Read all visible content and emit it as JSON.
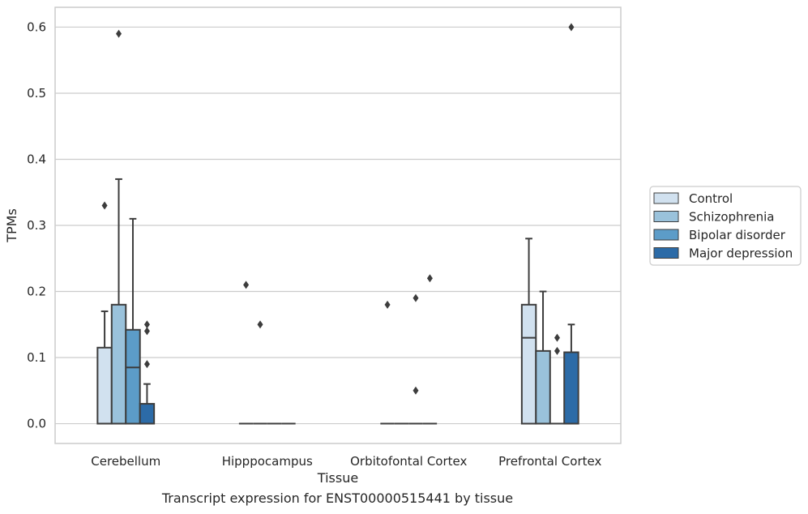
{
  "caption": "Transcript expression for ENST00000515441 by tissue",
  "chart_data": {
    "type": "box",
    "xlabel": "Tissue",
    "ylabel": "TPMs",
    "ylim": [
      -0.03,
      0.63
    ],
    "yticks": [
      "0.0",
      "0.1",
      "0.2",
      "0.3",
      "0.4",
      "0.5",
      "0.6"
    ],
    "grid": "horizontal",
    "legend_placement": "right",
    "categories": [
      "Cerebellum",
      "Hipppocampus",
      "Orbitofontal Cortex",
      "Prefrontal Cortex"
    ],
    "series": [
      {
        "name": "Control",
        "color": "#d1e1ef",
        "boxes": [
          {
            "q1": 0.0,
            "median": 0.0,
            "q3": 0.115,
            "whisker_low": 0.0,
            "whisker_high": 0.17,
            "outliers": [
              0.33
            ]
          },
          {
            "q1": 0.0,
            "median": 0.0,
            "q3": 0.0,
            "whisker_low": 0.0,
            "whisker_high": 0.0,
            "outliers": [
              0.21
            ]
          },
          {
            "q1": 0.0,
            "median": 0.0,
            "q3": 0.0,
            "whisker_low": 0.0,
            "whisker_high": 0.0,
            "outliers": [
              0.18
            ]
          },
          {
            "q1": 0.0,
            "median": 0.13,
            "q3": 0.18,
            "whisker_low": 0.0,
            "whisker_high": 0.28,
            "outliers": []
          }
        ]
      },
      {
        "name": "Schizophrenia",
        "color": "#9ac2db",
        "boxes": [
          {
            "q1": 0.0,
            "median": 0.0,
            "q3": 0.18,
            "whisker_low": 0.0,
            "whisker_high": 0.37,
            "outliers": [
              0.59
            ]
          },
          {
            "q1": 0.0,
            "median": 0.0,
            "q3": 0.0,
            "whisker_low": 0.0,
            "whisker_high": 0.0,
            "outliers": [
              0.15
            ]
          },
          {
            "q1": 0.0,
            "median": 0.0,
            "q3": 0.0,
            "whisker_low": 0.0,
            "whisker_high": 0.0,
            "outliers": []
          },
          {
            "q1": 0.0,
            "median": 0.0,
            "q3": 0.11,
            "whisker_low": 0.0,
            "whisker_high": 0.2,
            "outliers": []
          }
        ]
      },
      {
        "name": "Bipolar disorder",
        "color": "#5c9cc8",
        "boxes": [
          {
            "q1": 0.0,
            "median": 0.085,
            "q3": 0.142,
            "whisker_low": 0.0,
            "whisker_high": 0.31,
            "outliers": []
          },
          {
            "q1": 0.0,
            "median": 0.0,
            "q3": 0.0,
            "whisker_low": 0.0,
            "whisker_high": 0.0,
            "outliers": []
          },
          {
            "q1": 0.0,
            "median": 0.0,
            "q3": 0.0,
            "whisker_low": 0.0,
            "whisker_high": 0.0,
            "outliers": [
              0.19,
              0.05
            ]
          },
          {
            "q1": 0.0,
            "median": 0.0,
            "q3": 0.0,
            "whisker_low": 0.0,
            "whisker_high": 0.0,
            "outliers": [
              0.13,
              0.11
            ]
          }
        ]
      },
      {
        "name": "Major depression",
        "color": "#2c6ba7",
        "boxes": [
          {
            "q1": 0.0,
            "median": 0.0,
            "q3": 0.03,
            "whisker_low": 0.0,
            "whisker_high": 0.06,
            "outliers": [
              0.15,
              0.14,
              0.09
            ]
          },
          {
            "q1": 0.0,
            "median": 0.0,
            "q3": 0.0,
            "whisker_low": 0.0,
            "whisker_high": 0.0,
            "outliers": []
          },
          {
            "q1": 0.0,
            "median": 0.0,
            "q3": 0.0,
            "whisker_low": 0.0,
            "whisker_high": 0.0,
            "outliers": [
              0.22
            ]
          },
          {
            "q1": 0.0,
            "median": 0.0,
            "q3": 0.108,
            "whisker_low": 0.0,
            "whisker_high": 0.15,
            "outliers": [
              0.6
            ]
          }
        ]
      }
    ]
  }
}
